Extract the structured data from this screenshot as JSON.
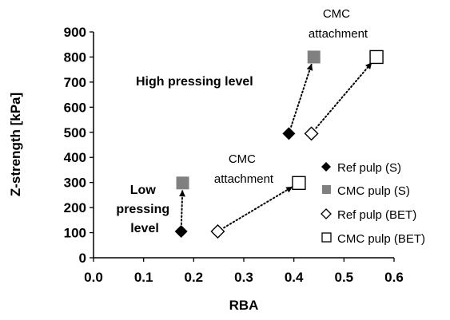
{
  "chart_data": {
    "type": "scatter",
    "title": "",
    "xlabel": "RBA",
    "ylabel": "Z-strength [kPa]",
    "xlim": [
      0.0,
      0.6
    ],
    "ylim": [
      0,
      900
    ],
    "x_ticks": [
      0.0,
      0.1,
      0.2,
      0.3,
      0.4,
      0.5,
      0.6
    ],
    "x_tick_labels": [
      "0.0",
      "0.1",
      "0.2",
      "0.3",
      "0.4",
      "0.5",
      "0.6"
    ],
    "y_ticks": [
      0,
      100,
      200,
      300,
      400,
      500,
      600,
      700,
      800,
      900
    ],
    "y_tick_labels": [
      "0",
      "100",
      "200",
      "300",
      "400",
      "500",
      "600",
      "700",
      "800",
      "900"
    ],
    "grid": false,
    "legend_position": "right",
    "series": [
      {
        "name": "Ref pulp (S)",
        "marker": "diamond-filled",
        "color": "#000000",
        "points": [
          {
            "x": 0.175,
            "y": 105
          },
          {
            "x": 0.39,
            "y": 495
          }
        ]
      },
      {
        "name": "CMC pulp (S)",
        "marker": "square-filled",
        "color": "#808080",
        "points": [
          {
            "x": 0.178,
            "y": 298
          },
          {
            "x": 0.44,
            "y": 800
          }
        ]
      },
      {
        "name": "Ref pulp (BET)",
        "marker": "diamond-open",
        "color": "#000000",
        "points": [
          {
            "x": 0.248,
            "y": 105
          },
          {
            "x": 0.435,
            "y": 495
          }
        ]
      },
      {
        "name": "CMC pulp (BET)",
        "marker": "square-open",
        "color": "#000000",
        "points": [
          {
            "x": 0.41,
            "y": 298
          },
          {
            "x": 0.565,
            "y": 800
          }
        ]
      }
    ],
    "arrows": [
      {
        "from": {
          "x": 0.175,
          "y": 105
        },
        "to": {
          "x": 0.178,
          "y": 298
        }
      },
      {
        "from": {
          "x": 0.39,
          "y": 495
        },
        "to": {
          "x": 0.44,
          "y": 800
        }
      },
      {
        "from": {
          "x": 0.248,
          "y": 105
        },
        "to": {
          "x": 0.41,
          "y": 298
        }
      },
      {
        "from": {
          "x": 0.435,
          "y": 495
        },
        "to": {
          "x": 0.565,
          "y": 800
        }
      }
    ],
    "annotations": [
      {
        "id": "cmc-top",
        "lines": [
          "CMC",
          "attachment"
        ],
        "bold": false
      },
      {
        "id": "cmc-mid",
        "lines": [
          "CMC",
          "attachment"
        ],
        "bold": false
      },
      {
        "id": "high",
        "lines": [
          "High pressing level"
        ],
        "bold": true
      },
      {
        "id": "low",
        "lines": [
          "Low",
          "pressing",
          "level"
        ],
        "bold": true
      }
    ]
  }
}
